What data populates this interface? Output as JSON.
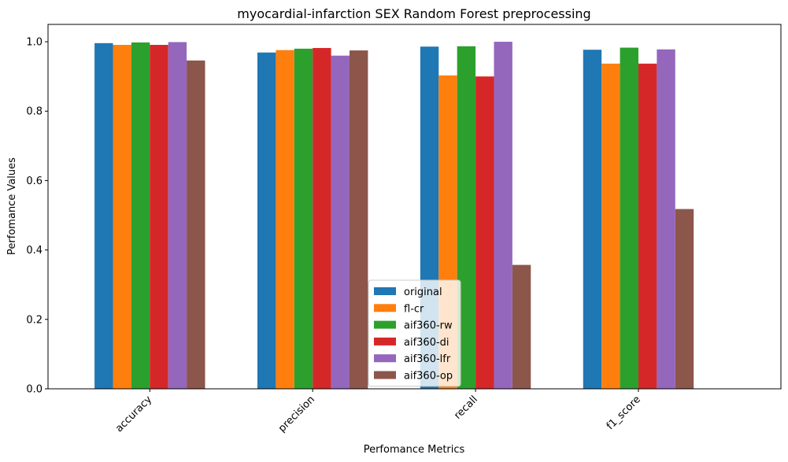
{
  "chart_data": {
    "type": "bar",
    "title": "myocardial-infarction SEX Random Forest preprocessing",
    "xlabel": "Perfomance Metrics",
    "ylabel": "Perfomance Values",
    "ylim": [
      0,
      1.05
    ],
    "yticks": [
      "0.0",
      "0.2",
      "0.4",
      "0.6",
      "0.8",
      "1.0"
    ],
    "categories": [
      "accuracy",
      "precision",
      "recall",
      "f1_score"
    ],
    "legend_position": "lower center",
    "grid": false,
    "series": [
      {
        "name": "original",
        "color": "#1f77b4",
        "values": [
          0.996,
          0.969,
          0.986,
          0.977
        ]
      },
      {
        "name": "fl-cr",
        "color": "#ff7f0e",
        "values": [
          0.991,
          0.976,
          0.903,
          0.937
        ]
      },
      {
        "name": "aif360-rw",
        "color": "#2ca02c",
        "values": [
          0.998,
          0.98,
          0.987,
          0.983
        ]
      },
      {
        "name": "aif360-di",
        "color": "#d62728",
        "values": [
          0.991,
          0.982,
          0.9,
          0.937
        ]
      },
      {
        "name": "aif360-lfr",
        "color": "#9467bd",
        "values": [
          0.999,
          0.96,
          1.0,
          0.978
        ]
      },
      {
        "name": "aif360-op",
        "color": "#8c564b",
        "values": [
          0.946,
          0.975,
          0.357,
          0.518
        ]
      }
    ]
  }
}
